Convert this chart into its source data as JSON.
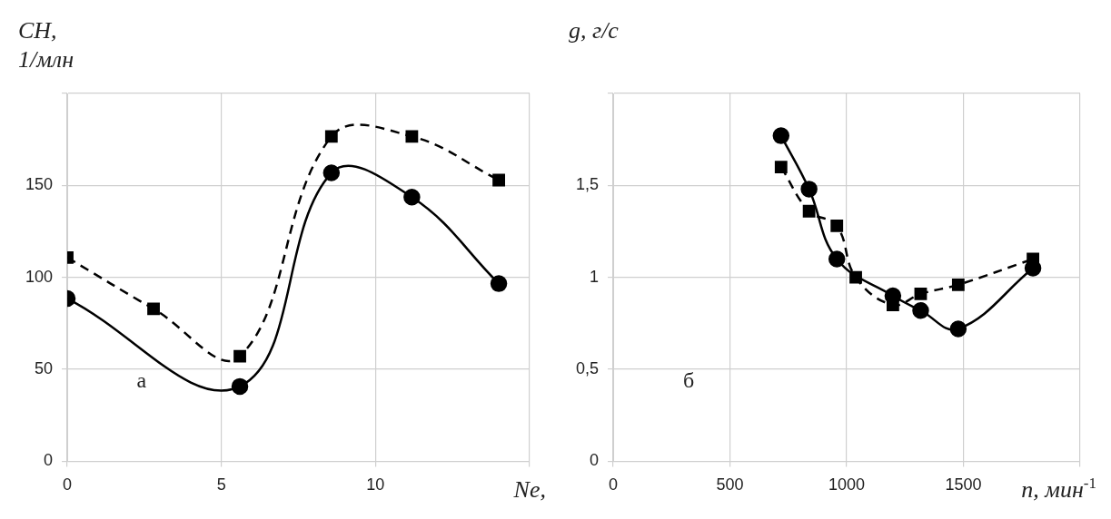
{
  "chart_data": [
    {
      "type": "line",
      "xlabel": "Ne,",
      "ylabel": "CH,\n1/млн",
      "x": [
        0,
        2.8,
        5.6,
        8.57,
        11.18,
        14.0
      ],
      "xlim": [
        0,
        15
      ],
      "xticks": [
        0,
        5,
        10,
        {
          "value": 15,
          "label": null
        }
      ],
      "ylim": [
        0,
        200
      ],
      "yticks": [
        0,
        50,
        100,
        150,
        {
          "value": 200,
          "label": null
        }
      ],
      "grid": true,
      "annotations": [
        "а"
      ],
      "series": [
        {
          "color": "#000000",
          "marker": "circle",
          "line_style": "solid",
          "values": [
            88.5,
            null,
            40.7,
            156.8,
            143.6,
            96.6
          ]
        },
        {
          "color": "#000000",
          "marker": "square",
          "line_style": "dashed",
          "values": [
            110.8,
            82.9,
            57.1,
            176.6,
            176.6,
            152.9
          ]
        }
      ]
    },
    {
      "type": "line",
      "xlabel": "n, мин$^{-1}$",
      "ylabel": "g, г/с",
      "x": [
        719,
        839,
        958,
        1039,
        1198,
        1317,
        1478,
        1798
      ],
      "xlim": [
        0,
        2000
      ],
      "xticks": [
        0,
        500,
        1000,
        1500,
        {
          "value": 2000,
          "label": null
        }
      ],
      "ylim": [
        0,
        2
      ],
      "yticks": [
        0,
        {
          "value": 0.5,
          "label": "0,5"
        },
        1,
        {
          "value": 1.5,
          "label": "1,5"
        },
        {
          "value": 2,
          "label": null
        }
      ],
      "grid": true,
      "annotations": [
        "б"
      ],
      "series": [
        {
          "color": "#000000",
          "marker": "circle",
          "line_style": "solid",
          "values": [
            1.77,
            1.48,
            1.1,
            null,
            0.9,
            0.82,
            0.72,
            1.05
          ]
        },
        {
          "color": "#000000",
          "marker": "square",
          "line_style": "dashed",
          "values": [
            1.6,
            1.36,
            1.28,
            1.0,
            0.85,
            0.91,
            0.96,
            1.1
          ]
        }
      ]
    }
  ]
}
